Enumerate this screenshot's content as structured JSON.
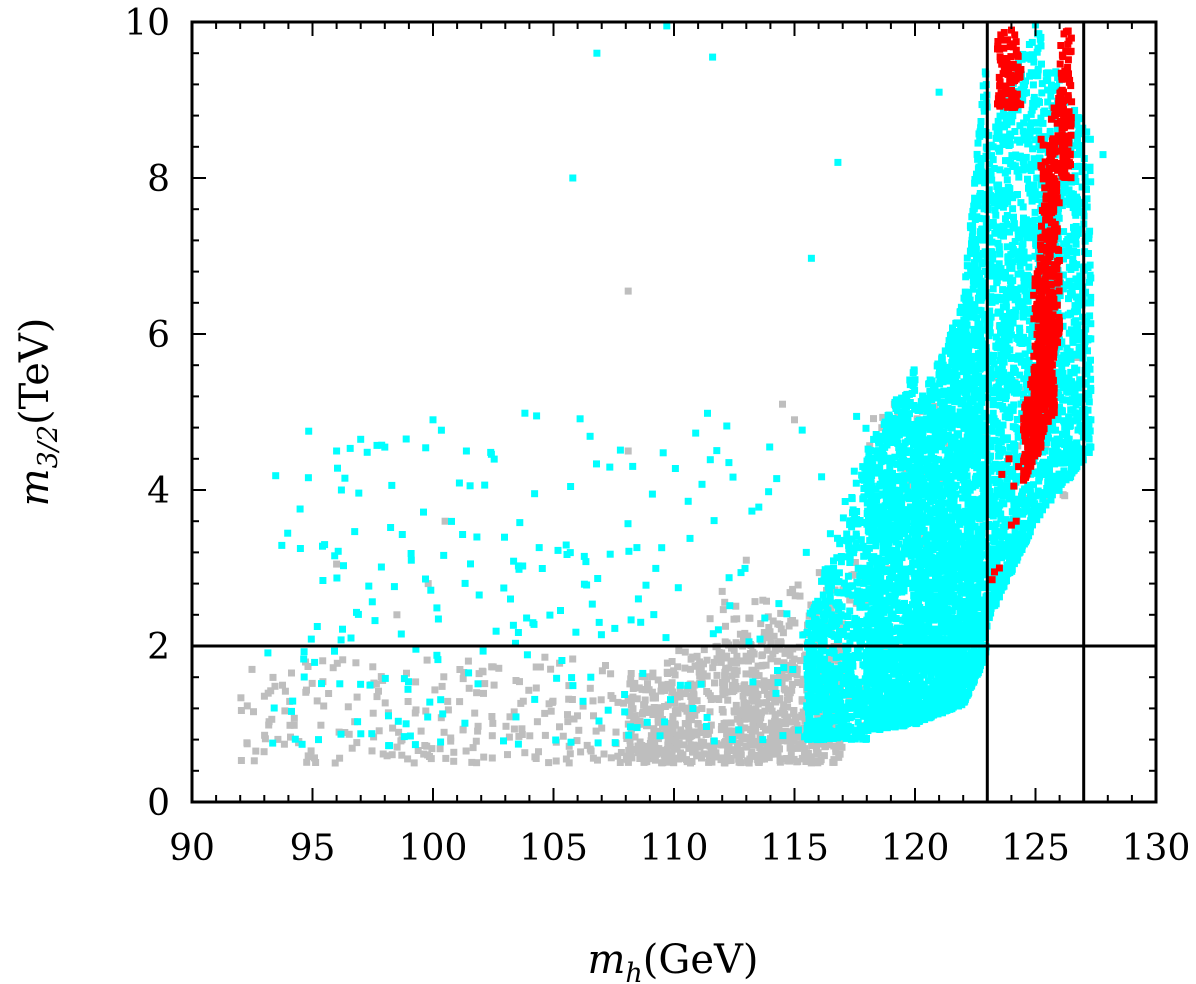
{
  "chart_data": {
    "type": "scatter",
    "title": "",
    "xlabel": {
      "var": "m",
      "sub": "h",
      "unit": "(GeV)"
    },
    "ylabel": {
      "var": "m",
      "sub": "3/2",
      "unit": "(TeV)"
    },
    "xlim": [
      90,
      130
    ],
    "ylim": [
      0,
      10
    ],
    "x_ticks": [
      90,
      95,
      100,
      105,
      110,
      115,
      120,
      125,
      130
    ],
    "y_ticks": [
      0,
      2,
      4,
      6,
      8,
      10
    ],
    "x_tick_labels": [
      "90",
      "95",
      "100",
      "105",
      "110",
      "115",
      "120",
      "125",
      "130"
    ],
    "y_tick_labels": [
      "0",
      "2",
      "4",
      "6",
      "8",
      "10"
    ],
    "grid": false,
    "legend": "none",
    "reference_lines": {
      "vertical": [
        123,
        127
      ],
      "horizontal": [
        2
      ]
    },
    "series": [
      {
        "color": "#bebebe",
        "regions": [
          {
            "x": [
              92,
              115
            ],
            "ylow": [
              0.5,
              0.5
            ],
            "yhigh": [
              1.8,
              2.0
            ],
            "count": 320
          },
          {
            "x": [
              108,
              117
            ],
            "ylow": [
              0.5,
              0.5
            ],
            "yhigh": [
              1.6,
              2.6
            ],
            "count": 700
          },
          {
            "x": [
              112,
              119
            ],
            "ylow": [
              0.6,
              1.0
            ],
            "yhigh": [
              2.6,
              3.2
            ],
            "count": 220
          },
          {
            "x": [
              118,
              127
            ],
            "ylow": [
              3.0,
              4.0
            ],
            "yhigh": [
              5.0,
              6.2
            ],
            "count": 60
          }
        ],
        "points": [
          [
            108.1,
            6.55
          ],
          [
            114.5,
            5.1
          ],
          [
            115.0,
            4.9
          ],
          [
            108.1,
            4.5
          ],
          [
            96.0,
            3.05
          ],
          [
            100.5,
            3.6
          ],
          [
            99.8,
            2.8
          ],
          [
            98.5,
            2.4
          ],
          [
            113.0,
            3.1
          ],
          [
            111.5,
            2.35
          ],
          [
            112.0,
            2.7
          ],
          [
            126.0,
            5.9
          ],
          [
            126.3,
            5.7
          ],
          [
            121.5,
            4.8
          ],
          [
            123.5,
            6.1
          ]
        ]
      },
      {
        "color": "#00ffff",
        "regions": [
          {
            "x": [
              93,
              118
            ],
            "ylow": [
              0.7,
              0.8
            ],
            "yhigh": [
              5.0,
              5.0
            ],
            "count": 260
          },
          {
            "x": [
              115.5,
              118
            ],
            "ylow": [
              0.8,
              0.8
            ],
            "yhigh": [
              2.3,
              4.5
            ],
            "count": 600
          },
          {
            "x": [
              118,
              120
            ],
            "ylow": [
              0.9,
              1.0
            ],
            "yhigh": [
              4.5,
              5.6
            ],
            "count": 1200
          },
          {
            "x": [
              120,
              122
            ],
            "ylow": [
              1.0,
              1.25
            ],
            "yhigh": [
              5.0,
              6.4
            ],
            "count": 1500
          },
          {
            "x": [
              122,
              123
            ],
            "ylow": [
              1.25,
              1.9
            ],
            "yhigh": [
              6.4,
              9.8
            ],
            "count": 900
          },
          {
            "x": [
              123,
              125
            ],
            "ylow": [
              2.3,
              3.6
            ],
            "yhigh": [
              8.5,
              10.0
            ],
            "count": 1000
          },
          {
            "x": [
              125,
              127.3
            ],
            "ylow": [
              3.6,
              4.5
            ],
            "yhigh": [
              10.0,
              8.5
            ],
            "count": 800
          }
        ],
        "points": [
          [
            106.8,
            9.6
          ],
          [
            111.6,
            9.55
          ],
          [
            109.7,
            9.95
          ],
          [
            105.8,
            8.0
          ],
          [
            116.8,
            8.2
          ],
          [
            115.7,
            6.97
          ],
          [
            94.5,
            3.25
          ],
          [
            95.2,
            2.25
          ],
          [
            96.0,
            4.5
          ],
          [
            97.0,
            4.65
          ],
          [
            98.0,
            4.55
          ],
          [
            100.0,
            4.9
          ],
          [
            104.3,
            4.95
          ],
          [
            95.5,
            3.3
          ],
          [
            96.2,
            4.0
          ],
          [
            99.1,
            3.1
          ],
          [
            127.3,
            4.9
          ],
          [
            127.3,
            4.55
          ],
          [
            127.8,
            8.3
          ],
          [
            121.0,
            9.1
          ]
        ]
      },
      {
        "color": "#ff0000",
        "regions": [
          {
            "x": [
              123.4,
              124.4
            ],
            "ylow": [
              8.9,
              8.9
            ],
            "yhigh": [
              9.9,
              9.9
            ],
            "count": 90
          },
          {
            "x": [
              126.0,
              126.5
            ],
            "ylow": [
              8.0,
              8.0
            ],
            "yhigh": [
              9.9,
              9.9
            ],
            "count": 110
          },
          {
            "x": [
              124.5,
              125.3
            ],
            "ylow": [
              4.1,
              4.6
            ],
            "yhigh": [
              5.0,
              6.0
            ],
            "count": 180
          },
          {
            "x": [
              124.9,
              125.8
            ],
            "ylow": [
              4.5,
              5.0
            ],
            "yhigh": [
              6.5,
              8.8
            ],
            "count": 280
          },
          {
            "x": [
              125.2,
              126.0
            ],
            "ylow": [
              5.0,
              6.0
            ],
            "yhigh": [
              8.5,
              9.1
            ],
            "count": 200
          }
        ],
        "points": [
          [
            123.2,
            2.85
          ],
          [
            123.3,
            2.95
          ],
          [
            123.5,
            3.0
          ],
          [
            124.0,
            3.55
          ],
          [
            124.2,
            3.6
          ],
          [
            123.6,
            4.2
          ],
          [
            123.9,
            4.4
          ],
          [
            124.3,
            4.3
          ],
          [
            124.1,
            4.05
          ]
        ]
      }
    ]
  }
}
